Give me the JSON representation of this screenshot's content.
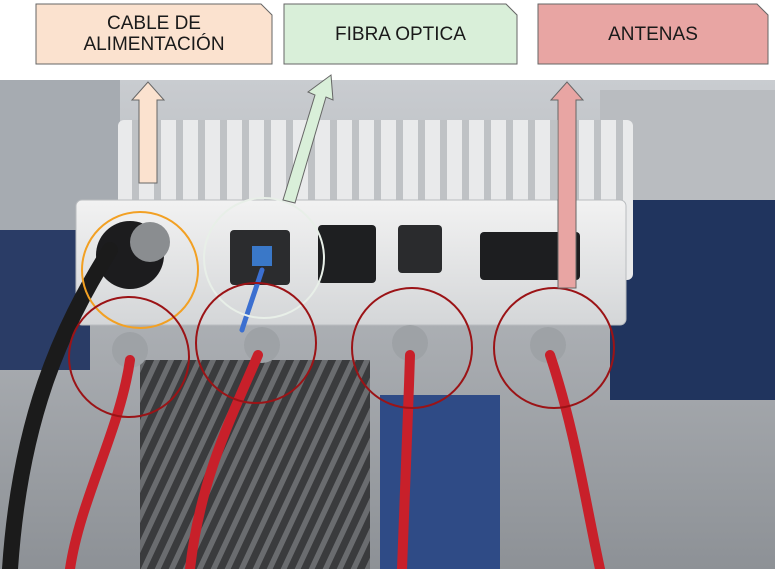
{
  "labels": {
    "power": "CABLE DE\nALIMENTACIÓN",
    "fiber": "FIBRA OPTICA",
    "antennas": "ANTENAS"
  },
  "colors": {
    "power_fill": "#fbe2cf",
    "fiber_fill": "#d9efd9",
    "antenna_fill": "#e8a5a3",
    "power_circle": "#f2a023",
    "fiber_circle": "#e8efe8",
    "antenna_circle": "#9b1316"
  }
}
